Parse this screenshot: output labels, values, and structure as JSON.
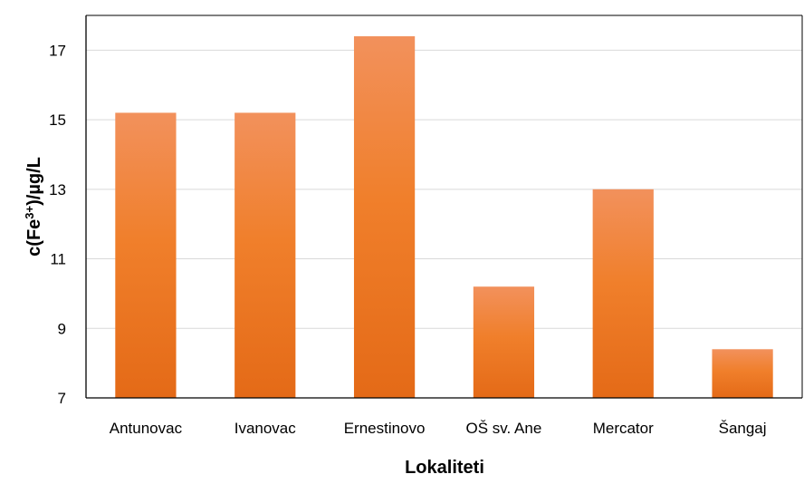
{
  "chart_data": {
    "type": "bar",
    "categories": [
      "Antunovac",
      "Ivanovac",
      "Ernestinovo",
      "OŠ sv. Ane",
      "Mercator",
      "Šangaj"
    ],
    "values": [
      15.2,
      15.2,
      17.4,
      10.2,
      13.0,
      8.4
    ],
    "xlabel": "Lokaliteti",
    "ylabel": {
      "prefix": "c(Fe",
      "superscript": "3+",
      "suffix": ")/µg/L"
    },
    "ylim": [
      7,
      18
    ],
    "yticks": [
      7,
      9,
      11,
      13,
      15,
      17
    ],
    "grid": true,
    "legend": "none",
    "colors": {
      "bar_top": "#F2915C",
      "bar_mid": "#F07F2B",
      "bar_bottom": "#E46A17",
      "gridline": "#D9D9D9",
      "axis": "#000000"
    }
  }
}
